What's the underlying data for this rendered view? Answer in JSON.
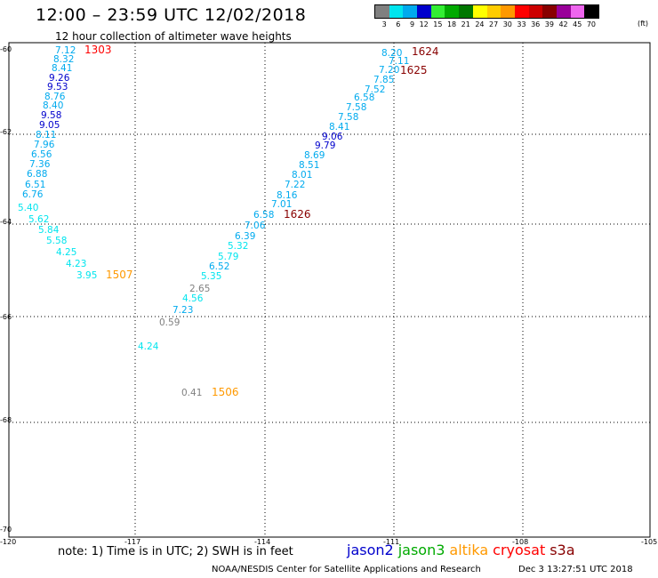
{
  "header": {
    "title": "12:00 – 23:59 UTC 12/02/2018",
    "subtitle": "12 hour collection of altimeter wave heights"
  },
  "legend": {
    "values": [
      "3",
      "6",
      "9",
      "12",
      "15",
      "18",
      "21",
      "24",
      "27",
      "30",
      "33",
      "36",
      "39",
      "42",
      "45",
      "70"
    ],
    "colors": [
      "#808080",
      "#00e5ee",
      "#00aaee",
      "#0000cc",
      "#33ee33",
      "#00aa00",
      "#007700",
      "#ffff00",
      "#ffcc00",
      "#ff9900",
      "#ff0000",
      "#cc0000",
      "#880000",
      "#990099",
      "#ee66ee",
      "#000000"
    ],
    "unit": "(ft)"
  },
  "map": {
    "x_tick_labels": [
      "-120",
      "-117",
      "-114",
      "-111",
      "-108",
      "-105"
    ],
    "y_tick_labels": [
      "-60",
      "-62",
      "-64",
      "-66",
      "-68",
      "-70"
    ],
    "tracks": [
      {
        "points": [
          {
            "v": "7.12",
            "c": "#00aaee"
          },
          {
            "v": "8.32",
            "c": "#00aaee"
          },
          {
            "v": "8.41",
            "c": "#00aaee"
          },
          {
            "v": "9.26",
            "c": "#0000cc"
          },
          {
            "v": "9.53",
            "c": "#0000cc"
          },
          {
            "v": "8.76",
            "c": "#00aaee"
          },
          {
            "v": "8.40",
            "c": "#00aaee"
          },
          {
            "v": "9.58",
            "c": "#0000cc"
          },
          {
            "v": "9.05",
            "c": "#0000cc"
          },
          {
            "v": "8.11",
            "c": "#00aaee"
          },
          {
            "v": "7.96",
            "c": "#00aaee"
          },
          {
            "v": "6.56",
            "c": "#00aaee"
          },
          {
            "v": "7.36",
            "c": "#00aaee"
          },
          {
            "v": "6.88",
            "c": "#00aaee"
          },
          {
            "v": "6.51",
            "c": "#00aaee"
          },
          {
            "v": "6.76",
            "c": "#00aaee"
          },
          {
            "v": "5.40",
            "c": "#00e5ee"
          },
          {
            "v": "5.62",
            "c": "#00e5ee"
          },
          {
            "v": "5.84",
            "c": "#00e5ee"
          },
          {
            "v": "5.58",
            "c": "#00e5ee"
          },
          {
            "v": "4.25",
            "c": "#00e5ee"
          },
          {
            "v": "4.23",
            "c": "#00e5ee"
          },
          {
            "v": "3.95",
            "c": "#00e5ee"
          }
        ],
        "times": [
          {
            "t": "1303",
            "c": "#ff0000"
          },
          {
            "t": "1507",
            "c": "#ff9900"
          }
        ]
      },
      {
        "points": [
          {
            "v": "8.20",
            "c": "#00aaee"
          },
          {
            "v": "7.11",
            "c": "#00aaee"
          },
          {
            "v": "7.20",
            "c": "#00aaee"
          },
          {
            "v": "7.85",
            "c": "#00aaee"
          },
          {
            "v": "7.52",
            "c": "#00aaee"
          },
          {
            "v": "6.58",
            "c": "#00aaee"
          },
          {
            "v": "7.58",
            "c": "#00aaee"
          },
          {
            "v": "7.58",
            "c": "#00aaee"
          },
          {
            "v": "8.41",
            "c": "#00aaee"
          },
          {
            "v": "9.06",
            "c": "#0000cc"
          },
          {
            "v": "9.79",
            "c": "#0000cc"
          },
          {
            "v": "8.69",
            "c": "#00aaee"
          },
          {
            "v": "8.51",
            "c": "#00aaee"
          },
          {
            "v": "8.01",
            "c": "#00aaee"
          },
          {
            "v": "7.22",
            "c": "#00aaee"
          },
          {
            "v": "8.16",
            "c": "#00aaee"
          },
          {
            "v": "7.01",
            "c": "#00aaee"
          },
          {
            "v": "6.58",
            "c": "#00aaee"
          },
          {
            "v": "7.06",
            "c": "#00aaee"
          },
          {
            "v": "6.39",
            "c": "#00aaee"
          },
          {
            "v": "5.32",
            "c": "#00e5ee"
          },
          {
            "v": "5.79",
            "c": "#00e5ee"
          },
          {
            "v": "6.52",
            "c": "#00aaee"
          },
          {
            "v": "5.35",
            "c": "#00e5ee"
          },
          {
            "v": "2.65",
            "c": "#808080"
          },
          {
            "v": "4.56",
            "c": "#00e5ee"
          },
          {
            "v": "7.23",
            "c": "#00aaee"
          },
          {
            "v": "0.59",
            "c": "#808080"
          },
          {
            "v": "4.24",
            "c": "#00e5ee"
          },
          {
            "v": "0.41",
            "c": "#808080"
          }
        ],
        "times": [
          {
            "t": "1624",
            "c": "#880000"
          },
          {
            "t": "1625",
            "c": "#880000"
          },
          {
            "t": "1626",
            "c": "#880000"
          },
          {
            "t": "1506",
            "c": "#ff9900"
          }
        ]
      }
    ]
  },
  "footer": {
    "note": "note: 1) Time is in UTC; 2) SWH is in feet",
    "satellites": [
      {
        "name": "jason2",
        "color": "#0000cc"
      },
      {
        "name": "jason3",
        "color": "#00aa00"
      },
      {
        "name": "altika",
        "color": "#ff9900"
      },
      {
        "name": "cryosat",
        "color": "#ff0000"
      },
      {
        "name": "s3a",
        "color": "#880000"
      }
    ],
    "credit": "NOAA/NESDIS Center for Satellite Applications and Research",
    "timestamp": "Dec  3 13:27:51 UTC 2018"
  }
}
